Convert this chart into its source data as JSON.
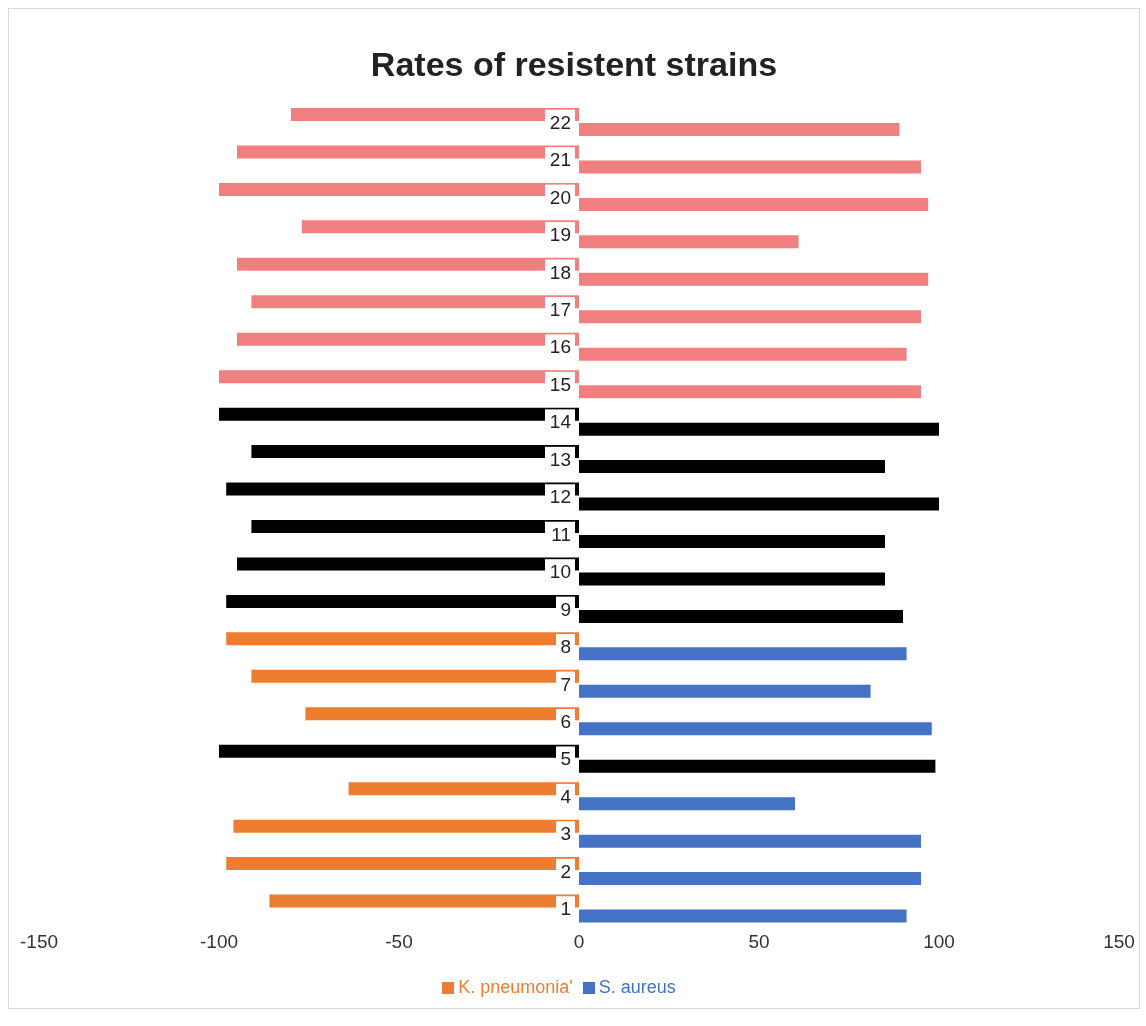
{
  "chart_data": {
    "type": "bar",
    "title": "Rates of resistent strains",
    "orientation": "horizontal",
    "categories": [
      "22",
      "21",
      "20",
      "19",
      "18",
      "17",
      "16",
      "15",
      "14",
      "13",
      "12",
      "11",
      "10",
      "9",
      "8",
      "7",
      "6",
      "5",
      "4",
      "3",
      "2",
      "1"
    ],
    "series": [
      {
        "name": "K. pneumonia'",
        "color": "#ed7d31",
        "colors": [
          "#f08080",
          "#f08080",
          "#f08080",
          "#f08080",
          "#f08080",
          "#f08080",
          "#f08080",
          "#f08080",
          "#000000",
          "#000000",
          "#000000",
          "#000000",
          "#000000",
          "#000000",
          "#ed7d31",
          "#ed7d31",
          "#ed7d31",
          "#000000",
          "#ed7d31",
          "#ed7d31",
          "#ed7d31",
          "#ed7d31"
        ],
        "values": [
          -80,
          -95,
          -100,
          -77,
          -95,
          -91,
          -95,
          -100,
          -100,
          -91,
          -98,
          -91,
          -95,
          -98,
          -98,
          -91,
          -76,
          -100,
          -64,
          -96,
          -98,
          -86
        ]
      },
      {
        "name": "S. aureus",
        "color": "#4472c4",
        "colors": [
          "#f08080",
          "#f08080",
          "#f08080",
          "#f08080",
          "#f08080",
          "#f08080",
          "#f08080",
          "#f08080",
          "#000000",
          "#000000",
          "#000000",
          "#000000",
          "#000000",
          "#000000",
          "#4472c4",
          "#4472c4",
          "#4472c4",
          "#000000",
          "#4472c4",
          "#4472c4",
          "#4472c4",
          "#4472c4"
        ],
        "values": [
          89,
          95,
          97,
          61,
          97,
          95,
          91,
          95,
          100,
          85,
          100,
          85,
          85,
          90,
          91,
          81,
          98,
          99,
          60,
          95,
          95,
          91
        ]
      }
    ],
    "xlim": [
      -150,
      150
    ],
    "xticks": [
      -150,
      -100,
      -50,
      0,
      50,
      100,
      150
    ],
    "legend": "bottom"
  }
}
